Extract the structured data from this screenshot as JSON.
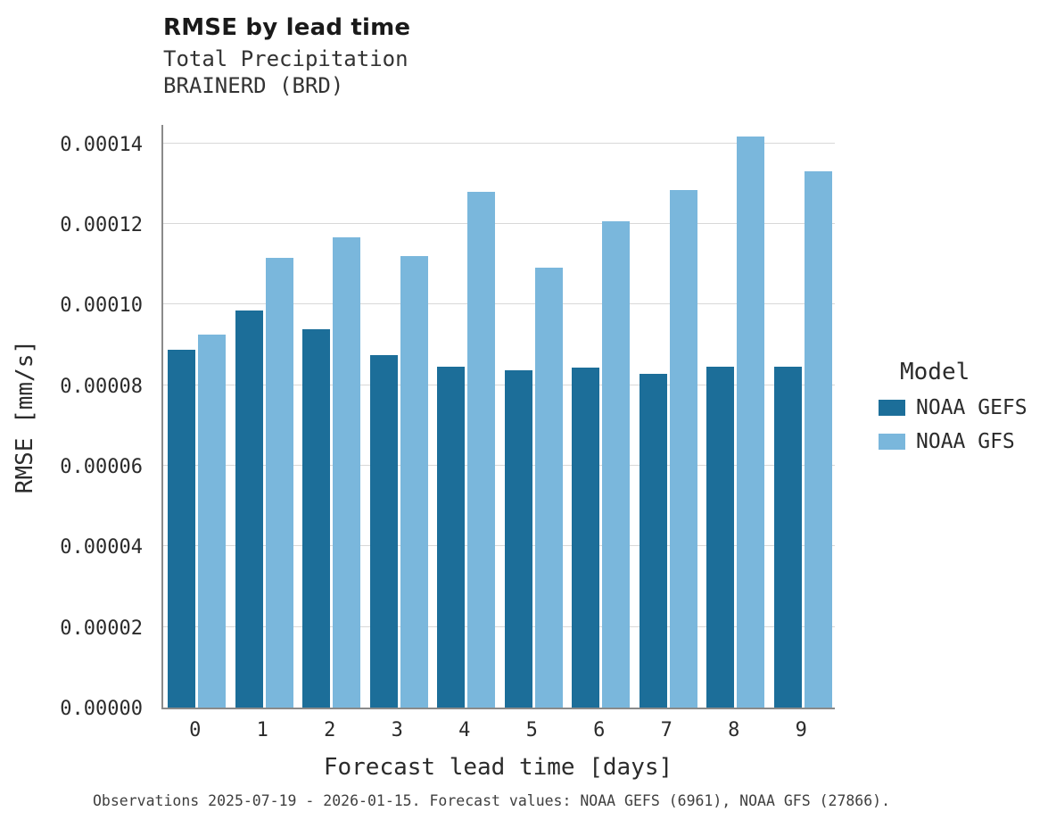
{
  "title": "RMSE by lead time",
  "subtitle_line1": "Total Precipitation",
  "subtitle_line2": "BRAINERD (BRD)",
  "caption": "Observations 2025-07-19 - 2026-01-15. Forecast values: NOAA GEFS (6961), NOAA GFS (27866).",
  "legend_title": "Model",
  "colors": {
    "background": "#ffffff",
    "grid": "#d8d8d8",
    "spine": "#8a8a8a",
    "text": "#2b2b2b",
    "gefs_bar": "#1c6e99",
    "gfs_bar": "#7ab7dc"
  },
  "chart_data": {
    "type": "bar",
    "title": "RMSE by lead time",
    "xlabel": "Forecast lead time [days]",
    "ylabel": "RMSE [mm/s]",
    "categories": [
      "0",
      "1",
      "2",
      "3",
      "4",
      "5",
      "6",
      "7",
      "8",
      "9"
    ],
    "series": [
      {
        "name": "NOAA GEFS",
        "color": "#1c6e99",
        "values": [
          8.87e-05,
          9.85e-05,
          9.39e-05,
          8.75e-05,
          8.45e-05,
          8.37e-05,
          8.43e-05,
          8.28e-05,
          8.46e-05,
          8.46e-05
        ]
      },
      {
        "name": "NOAA GFS",
        "color": "#7ab7dc",
        "values": [
          9.25e-05,
          0.0001116,
          0.0001166,
          0.0001121,
          0.000128,
          0.0001092,
          0.0001206,
          0.0001284,
          0.0001416,
          0.000133
        ]
      }
    ],
    "ylim": [
      0,
      0.000145
    ],
    "yticks": [
      0,
      2e-05,
      4e-05,
      6e-05,
      8e-05,
      0.0001,
      0.00012,
      0.00014
    ],
    "ytick_decimals": 5,
    "grid": true,
    "legend_position": "right",
    "legend_title": "Model"
  }
}
